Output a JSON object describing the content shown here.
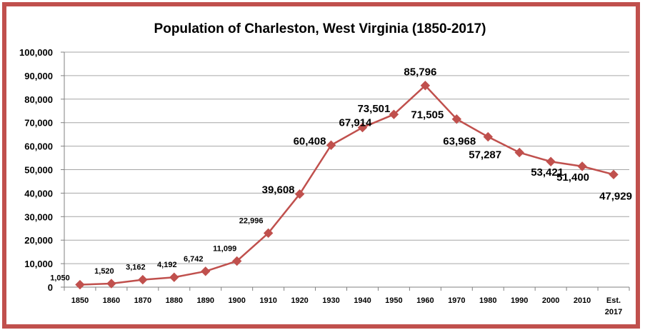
{
  "chart_data": {
    "type": "line",
    "title": "Population of Charleston, West Virginia (1850-2017)",
    "xlabel": "",
    "ylabel": "",
    "ylim": [
      0,
      100000
    ],
    "y_tick_values": [
      0,
      10000,
      20000,
      30000,
      40000,
      50000,
      60000,
      70000,
      80000,
      90000,
      100000
    ],
    "y_tick_labels": [
      "0",
      "10,000",
      "20,000",
      "30,000",
      "40,000",
      "50,000",
      "60,000",
      "70,000",
      "80,000",
      "90,000",
      "100,000"
    ],
    "grid": true,
    "categories": [
      "1850",
      "1860",
      "1870",
      "1880",
      "1890",
      "1900",
      "1910",
      "1920",
      "1930",
      "1940",
      "1950",
      "1960",
      "1970",
      "1980",
      "1990",
      "2000",
      "2010",
      "Est. 2017"
    ],
    "category_lines": [
      [
        "1850"
      ],
      [
        "1860"
      ],
      [
        "1870"
      ],
      [
        "1880"
      ],
      [
        "1890"
      ],
      [
        "1900"
      ],
      [
        "1910"
      ],
      [
        "1920"
      ],
      [
        "1930"
      ],
      [
        "1940"
      ],
      [
        "1950"
      ],
      [
        "1960"
      ],
      [
        "1970"
      ],
      [
        "1980"
      ],
      [
        "1990"
      ],
      [
        "2000"
      ],
      [
        "2010"
      ],
      [
        "Est.",
        "2017"
      ]
    ],
    "series": [
      {
        "name": "Population",
        "color": "#c0504d",
        "values": [
          1050,
          1520,
          3162,
          4192,
          6742,
          11099,
          22996,
          39608,
          60408,
          67914,
          73501,
          85796,
          71505,
          63968,
          57287,
          53421,
          51400,
          47929
        ],
        "data_labels": [
          "1,050",
          "1,520",
          "3,162",
          "4,192",
          "6,742",
          "11,099",
          "22,996",
          "39,608",
          "60,408",
          "67,914",
          "73,501",
          "85,796",
          "71,505",
          "63,968",
          "57,287",
          "53,421",
          "51,400",
          "47,929"
        ]
      }
    ]
  },
  "colors": {
    "border": "#c0504d",
    "line": "#c0504d",
    "grid": "#a6a6a6"
  }
}
